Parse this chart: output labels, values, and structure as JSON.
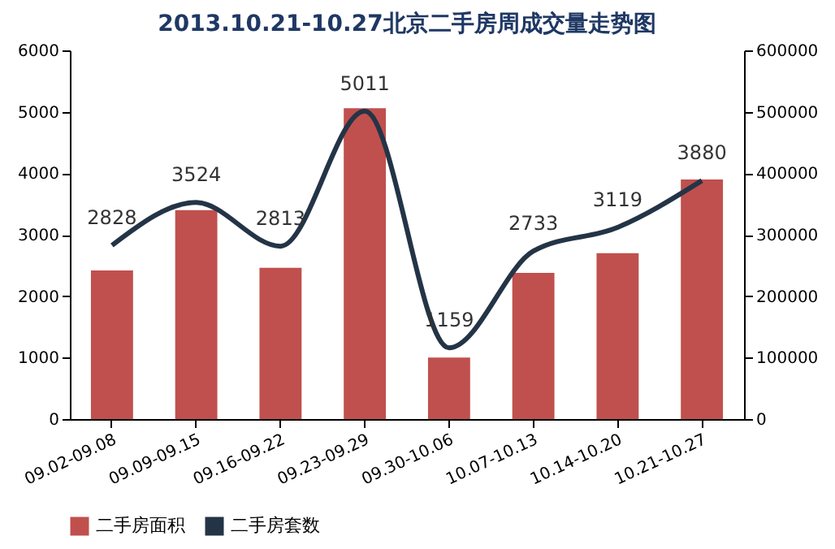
{
  "chart_data": {
    "type": "bar",
    "title": "2013.10.21-10.27北京二手房周成交量走势图",
    "categories": [
      "09.02-09.08",
      "09.09-09.15",
      "09.16-09.22",
      "09.23-09.29",
      "09.30-10.06",
      "10.07-10.13",
      "10.14-10.20",
      "10.21-10.27"
    ],
    "series": [
      {
        "name": "二手房面积",
        "axis": "y2",
        "color": "#c0504d",
        "values": [
          242000,
          340000,
          246000,
          506000,
          100000,
          238000,
          270000,
          390000
        ]
      },
      {
        "name": "二手房套数",
        "type": "line",
        "color": "#243447",
        "values": [
          2828,
          3524,
          2813,
          5011,
          1159,
          2733,
          3119,
          3880
        ],
        "value_labels": [
          "2828",
          "3524",
          "2813",
          "5011",
          "1159",
          "2733",
          "3119",
          "3880"
        ]
      }
    ],
    "ylim": [
      0,
      6000
    ],
    "yticks": [
      0,
      1000,
      2000,
      3000,
      4000,
      5000,
      6000
    ],
    "y2lim": [
      0,
      600000
    ],
    "y2ticks": [
      0,
      100000,
      200000,
      300000,
      400000,
      500000,
      600000
    ],
    "grid": false,
    "legend": "bottom",
    "marker": "none",
    "line_style": "solid"
  }
}
